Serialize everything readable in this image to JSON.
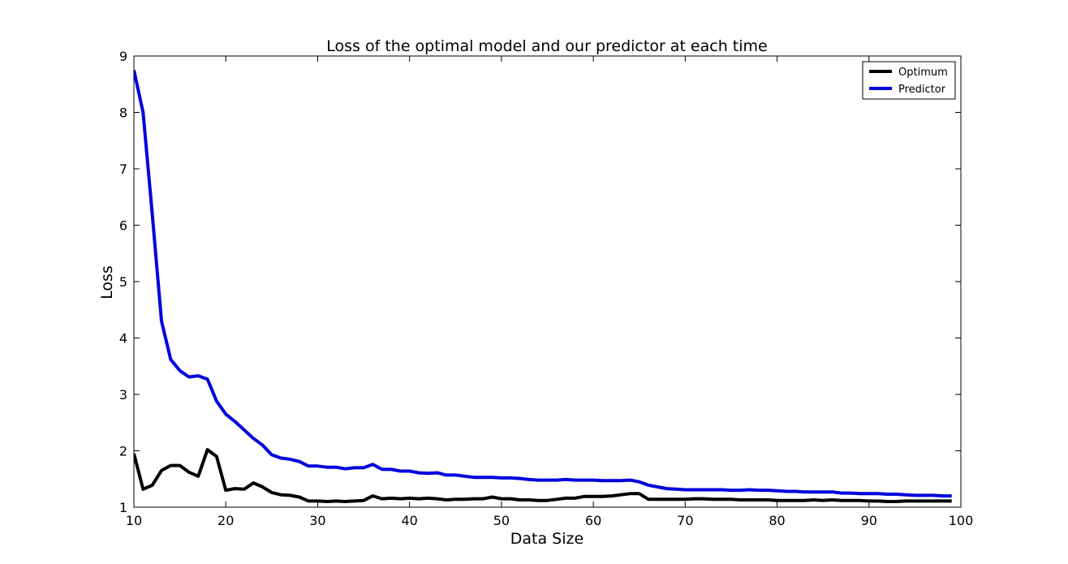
{
  "chart_data": {
    "type": "line",
    "title": "Loss of the optimal model and our predictor at each time",
    "xlabel": "Data Size",
    "ylabel": "Loss",
    "xlim": [
      10,
      100
    ],
    "ylim": [
      1,
      9
    ],
    "xticks": [
      "10",
      "20",
      "30",
      "40",
      "50",
      "60",
      "70",
      "80",
      "90",
      "100"
    ],
    "yticks": [
      "1",
      "2",
      "3",
      "4",
      "5",
      "6",
      "7",
      "8",
      "9"
    ],
    "legend_position": "top-right",
    "grid": false,
    "x": [
      10,
      11,
      12,
      13,
      14,
      15,
      16,
      17,
      18,
      19,
      20,
      21,
      22,
      23,
      24,
      25,
      26,
      27,
      28,
      29,
      30,
      31,
      32,
      33,
      34,
      35,
      36,
      37,
      38,
      39,
      40,
      41,
      42,
      43,
      44,
      45,
      46,
      47,
      48,
      49,
      50,
      51,
      52,
      53,
      54,
      55,
      56,
      57,
      58,
      59,
      60,
      61,
      62,
      63,
      64,
      65,
      66,
      67,
      68,
      69,
      70,
      71,
      72,
      73,
      74,
      75,
      76,
      77,
      78,
      79,
      80,
      81,
      82,
      83,
      84,
      85,
      86,
      87,
      88,
      89,
      90,
      91,
      92,
      93,
      94,
      95,
      96,
      97,
      98,
      99
    ],
    "series": [
      {
        "name": "Optimum",
        "color": "#000000",
        "values": [
          1.95,
          1.32,
          1.39,
          1.65,
          1.74,
          1.74,
          1.62,
          1.55,
          2.02,
          1.9,
          1.3,
          1.33,
          1.32,
          1.43,
          1.36,
          1.26,
          1.22,
          1.21,
          1.18,
          1.11,
          1.11,
          1.1,
          1.11,
          1.1,
          1.11,
          1.12,
          1.2,
          1.15,
          1.16,
          1.15,
          1.16,
          1.15,
          1.16,
          1.15,
          1.13,
          1.14,
          1.14,
          1.15,
          1.15,
          1.18,
          1.15,
          1.15,
          1.13,
          1.13,
          1.12,
          1.12,
          1.14,
          1.16,
          1.16,
          1.19,
          1.19,
          1.19,
          1.2,
          1.22,
          1.24,
          1.24,
          1.14,
          1.14,
          1.14,
          1.14,
          1.14,
          1.15,
          1.15,
          1.14,
          1.14,
          1.14,
          1.13,
          1.13,
          1.13,
          1.13,
          1.12,
          1.12,
          1.12,
          1.12,
          1.13,
          1.12,
          1.13,
          1.12,
          1.12,
          1.12,
          1.11,
          1.11,
          1.1,
          1.1,
          1.11,
          1.11,
          1.11,
          1.11,
          1.11,
          1.11
        ]
      },
      {
        "name": "Predictor",
        "color": "#0000dd",
        "values": [
          8.75,
          8.0,
          6.2,
          4.3,
          3.62,
          3.42,
          3.31,
          3.33,
          3.27,
          2.88,
          2.65,
          2.52,
          2.37,
          2.22,
          2.1,
          1.93,
          1.87,
          1.85,
          1.81,
          1.73,
          1.73,
          1.71,
          1.71,
          1.68,
          1.7,
          1.7,
          1.76,
          1.67,
          1.67,
          1.64,
          1.64,
          1.61,
          1.6,
          1.61,
          1.57,
          1.57,
          1.55,
          1.53,
          1.53,
          1.53,
          1.52,
          1.52,
          1.51,
          1.49,
          1.48,
          1.48,
          1.48,
          1.49,
          1.48,
          1.48,
          1.48,
          1.47,
          1.47,
          1.47,
          1.48,
          1.45,
          1.39,
          1.36,
          1.33,
          1.32,
          1.31,
          1.31,
          1.31,
          1.31,
          1.31,
          1.3,
          1.3,
          1.31,
          1.3,
          1.3,
          1.29,
          1.28,
          1.28,
          1.27,
          1.27,
          1.27,
          1.27,
          1.25,
          1.25,
          1.24,
          1.24,
          1.24,
          1.23,
          1.23,
          1.22,
          1.21,
          1.21,
          1.21,
          1.2,
          1.2
        ]
      }
    ]
  }
}
